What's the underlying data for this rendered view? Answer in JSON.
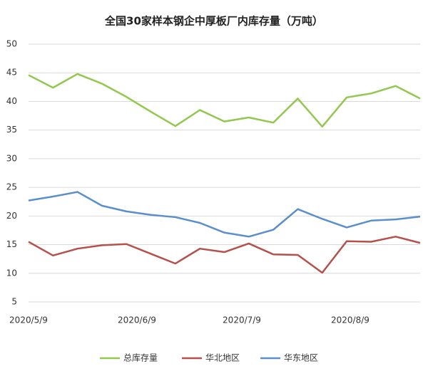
{
  "chart_data": {
    "type": "line",
    "title": "全国30家样本钢企中厚板厂内库存量（万吨）",
    "x": [
      "2020/5/9",
      "2020/5/16",
      "2020/5/23",
      "2020/5/30",
      "2020/6/6",
      "2020/6/13",
      "2020/6/20",
      "2020/6/27",
      "2020/7/4",
      "2020/7/11",
      "2020/7/18",
      "2020/7/25",
      "2020/8/1",
      "2020/8/8",
      "2020/8/15",
      "2020/8/22",
      "2020/8/29"
    ],
    "xlim": [
      "2020/5/9",
      "2020/8/29"
    ],
    "xticks": [
      "2020/5/9",
      "2020/6/9",
      "2020/7/9",
      "2020/8/9"
    ],
    "ylim": [
      5,
      50
    ],
    "yticks": [
      5,
      10,
      15,
      20,
      25,
      30,
      35,
      40,
      45,
      50
    ],
    "grid": true,
    "series": [
      {
        "name": "总库存量",
        "color": "#92c84e",
        "values": [
          44.6,
          42.4,
          44.8,
          43.1,
          40.8,
          38.2,
          35.7,
          38.5,
          36.5,
          37.2,
          36.3,
          40.5,
          35.6,
          40.7,
          41.4,
          42.7,
          40.5
        ]
      },
      {
        "name": "华北地区",
        "color": "#b5504a",
        "values": [
          15.5,
          13.1,
          14.3,
          14.9,
          15.1,
          13.4,
          11.7,
          14.3,
          13.7,
          15.2,
          13.3,
          13.2,
          10.1,
          15.6,
          15.5,
          16.4,
          15.3
        ]
      },
      {
        "name": "华东地区",
        "color": "#5b8fcb",
        "values": [
          22.7,
          23.4,
          24.2,
          21.8,
          20.8,
          20.2,
          19.8,
          18.8,
          17.1,
          16.4,
          17.6,
          21.2,
          19.5,
          18.0,
          19.2,
          19.4,
          19.9
        ]
      }
    ]
  }
}
